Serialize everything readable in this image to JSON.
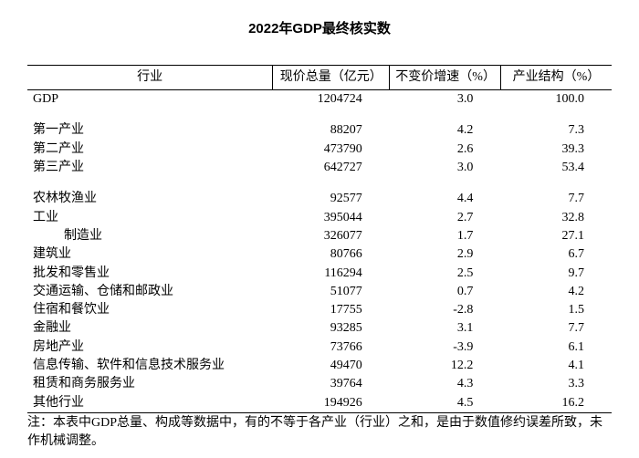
{
  "title": "2022年GDP最终核实数",
  "columns": [
    "行业",
    "现价总量（亿元）",
    "不变价增速（%）",
    "产业结构（%）"
  ],
  "rows": [
    {
      "label": "GDP",
      "indent": 0,
      "v1": "1204724",
      "v2": "3.0",
      "v3": "100.0",
      "spacerAfter": true
    },
    {
      "label": "第一产业",
      "indent": 0,
      "v1": "88207",
      "v2": "4.2",
      "v3": "7.3"
    },
    {
      "label": "第二产业",
      "indent": 0,
      "v1": "473790",
      "v2": "2.6",
      "v3": "39.3"
    },
    {
      "label": "第三产业",
      "indent": 0,
      "v1": "642727",
      "v2": "3.0",
      "v3": "53.4",
      "spacerAfter": true
    },
    {
      "label": "农林牧渔业",
      "indent": 0,
      "v1": "92577",
      "v2": "4.4",
      "v3": "7.7"
    },
    {
      "label": "工业",
      "indent": 0,
      "v1": "395044",
      "v2": "2.7",
      "v3": "32.8"
    },
    {
      "label": "制造业",
      "indent": 2,
      "v1": "326077",
      "v2": "1.7",
      "v3": "27.1"
    },
    {
      "label": "建筑业",
      "indent": 0,
      "v1": "80766",
      "v2": "2.9",
      "v3": "6.7"
    },
    {
      "label": "批发和零售业",
      "indent": 0,
      "v1": "116294",
      "v2": "2.5",
      "v3": "9.7"
    },
    {
      "label": "交通运输、仓储和邮政业",
      "indent": 0,
      "v1": "51077",
      "v2": "0.7",
      "v3": "4.2"
    },
    {
      "label": "住宿和餐饮业",
      "indent": 0,
      "v1": "17755",
      "v2": "-2.8",
      "v3": "1.5"
    },
    {
      "label": "金融业",
      "indent": 0,
      "v1": "93285",
      "v2": "3.1",
      "v3": "7.7"
    },
    {
      "label": "房地产业",
      "indent": 0,
      "v1": "73766",
      "v2": "-3.9",
      "v3": "6.1"
    },
    {
      "label": "信息传输、软件和信息技术服务业",
      "indent": 0,
      "v1": "49470",
      "v2": "12.2",
      "v3": "4.1"
    },
    {
      "label": "租赁和商务服务业",
      "indent": 0,
      "v1": "39764",
      "v2": "4.3",
      "v3": "3.3"
    },
    {
      "label": "其他行业",
      "indent": 0,
      "v1": "194926",
      "v2": "4.5",
      "v3": "16.2"
    }
  ],
  "footnote": "注：本表中GDP总量、构成等数据中，有的不等于各产业（行业）之和，是由于数值修约误差所致，未作机械调整。"
}
